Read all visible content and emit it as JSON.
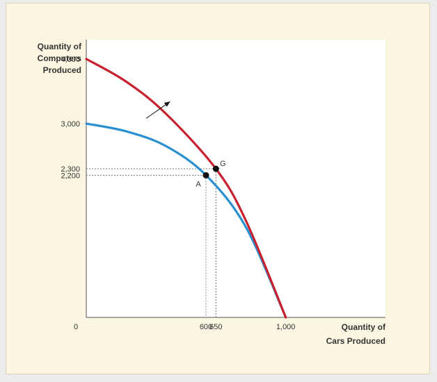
{
  "chart_data": {
    "type": "line",
    "ylabel": [
      "Quantity of",
      "Computers",
      "Produced"
    ],
    "xlabel": [
      "Quantity of",
      "Cars Produced"
    ],
    "origin_label": "0",
    "xlim": [
      0,
      1500
    ],
    "ylim": [
      0,
      4300
    ],
    "y_ticks": [
      {
        "value": 4000,
        "label": "4,000"
      },
      {
        "value": 3000,
        "label": "3,000"
      },
      {
        "value": 2300,
        "label": "2,300"
      },
      {
        "value": 2200,
        "label": "2,200"
      }
    ],
    "x_ticks": [
      {
        "value": 600,
        "label": "600"
      },
      {
        "value": 650,
        "label": "650"
      },
      {
        "value": 1000,
        "label": "1,000"
      }
    ],
    "series": [
      {
        "color": "#c8202f",
        "points": [
          [
            0,
            4000
          ],
          [
            200,
            3650
          ],
          [
            400,
            3150
          ],
          [
            650,
            2300
          ],
          [
            800,
            1500
          ],
          [
            1000,
            0
          ]
        ]
      },
      {
        "color": "#2a8fd0",
        "points": [
          [
            0,
            3000
          ],
          [
            200,
            2880
          ],
          [
            400,
            2650
          ],
          [
            600,
            2200
          ],
          [
            800,
            1400
          ],
          [
            1000,
            0
          ]
        ]
      }
    ],
    "points": [
      {
        "label": "G",
        "x": 650,
        "y": 2300
      },
      {
        "label": "A",
        "x": 600,
        "y": 2200
      }
    ],
    "arrow": {
      "from": [
        300,
        3080
      ],
      "to": [
        420,
        3340
      ]
    }
  }
}
